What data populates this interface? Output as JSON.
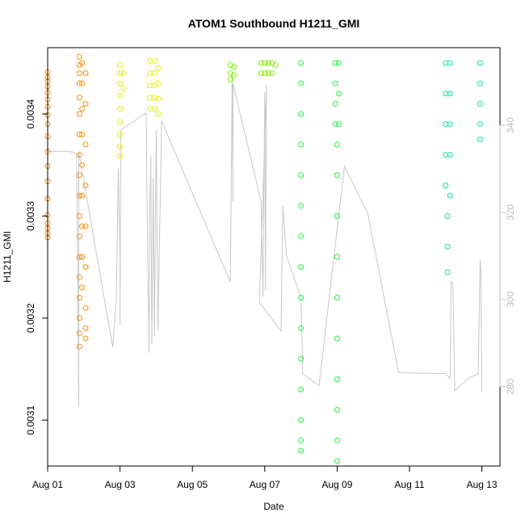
{
  "chart_data": {
    "type": "scatter",
    "title": "ATOM1 Southbound H1211_GMI",
    "xlabel": "Date",
    "ylabel": "H1211_GMI",
    "x_ticks": [
      "Aug 01",
      "Aug 03",
      "Aug 05",
      "Aug 07",
      "Aug 09",
      "Aug 11",
      "Aug 13"
    ],
    "y_ticks": [
      "0.0031",
      "0.0032",
      "0.0033",
      "0.0034"
    ],
    "y_ticks_right": [
      "280",
      "300",
      "320",
      "340"
    ],
    "xlim": [
      0.0,
      12.5
    ],
    "ylim": [
      0.003055,
      0.003465
    ],
    "ylim_right": [
      261.8,
      357.8
    ],
    "grid": false,
    "secondary_series": {
      "color": "#c8c8c8",
      "points": [
        [
          0.0,
          301.4
        ],
        [
          0.0,
          334.0
        ],
        [
          0.6,
          334.0
        ],
        [
          0.8,
          333.5
        ],
        [
          0.86,
          275.5
        ],
        [
          0.86,
          334.0
        ],
        [
          1.8,
          289.0
        ],
        [
          1.9,
          300.6
        ],
        [
          1.95,
          330.0
        ],
        [
          2.0,
          309.5
        ],
        [
          2.0,
          294.0
        ],
        [
          2.02,
          338.9
        ],
        [
          2.72,
          342.8
        ],
        [
          2.8,
          287.8
        ],
        [
          2.82,
          317.6
        ],
        [
          2.85,
          333.0
        ],
        [
          2.88,
          289.8
        ],
        [
          2.92,
          328.0
        ],
        [
          2.95,
          291.5
        ],
        [
          3.0,
          339.0
        ],
        [
          3.05,
          293.0
        ],
        [
          3.1,
          318.0
        ],
        [
          3.15,
          341.0
        ],
        [
          5.05,
          304.0
        ],
        [
          5.1,
          352.0
        ],
        [
          5.12,
          322.5
        ],
        [
          5.12,
          349.5
        ],
        [
          5.9,
          322.5
        ],
        [
          5.95,
          300.6
        ],
        [
          6.0,
          347.6
        ],
        [
          6.02,
          302.0
        ],
        [
          6.05,
          349.2
        ],
        [
          5.85,
          299.3
        ],
        [
          6.45,
          292.8
        ],
        [
          6.5,
          321.4
        ],
        [
          6.6,
          310.0
        ],
        [
          7.0,
          300.5
        ],
        [
          7.05,
          283.0
        ],
        [
          7.5,
          280.2
        ],
        [
          8.2,
          330.6
        ],
        [
          8.85,
          319.6
        ],
        [
          9.7,
          283.2
        ],
        [
          11.0,
          283.0
        ],
        [
          11.12,
          281.9
        ],
        [
          11.15,
          304.2
        ],
        [
          11.2,
          303.6
        ],
        [
          11.25,
          279.1
        ],
        [
          11.65,
          282.1
        ],
        [
          11.9,
          282.9
        ],
        [
          11.95,
          309.1
        ],
        [
          11.97,
          306.8
        ],
        [
          12.0,
          278.8
        ]
      ]
    },
    "series": [
      {
        "color": "#ff8c00",
        "points": [
          [
            0.0,
            0.003441
          ],
          [
            0.0,
            0.003436
          ],
          [
            0.0,
            0.003432
          ],
          [
            0.0,
            0.003427
          ],
          [
            0.0,
            0.003421
          ],
          [
            0.0,
            0.003414
          ],
          [
            0.0,
            0.003407
          ],
          [
            0.0,
            0.003399
          ],
          [
            0.0,
            0.00339
          ],
          [
            0.0,
            0.003378
          ],
          [
            0.0,
            0.003363
          ],
          [
            0.0,
            0.003349
          ],
          [
            0.0,
            0.003334
          ],
          [
            0.0,
            0.003317
          ],
          [
            0.0,
            0.003301
          ],
          [
            0.0,
            0.003293
          ],
          [
            0.0,
            0.003288
          ],
          [
            0.0,
            0.003283
          ],
          [
            0.0,
            0.003279
          ],
          [
            0.88,
            0.003456
          ],
          [
            0.88,
            0.003448
          ],
          [
            0.88,
            0.00344
          ],
          [
            0.88,
            0.00343
          ],
          [
            0.88,
            0.003416
          ],
          [
            0.88,
            0.0034
          ],
          [
            0.88,
            0.00338
          ],
          [
            0.88,
            0.00336
          ],
          [
            0.88,
            0.00334
          ],
          [
            0.88,
            0.00332
          ],
          [
            0.88,
            0.0033
          ],
          [
            0.88,
            0.00328
          ],
          [
            0.88,
            0.00326
          ],
          [
            0.88,
            0.00324
          ],
          [
            0.88,
            0.00322
          ],
          [
            0.88,
            0.0032
          ],
          [
            0.88,
            0.003185
          ],
          [
            0.88,
            0.003172
          ],
          [
            0.95,
            0.00345
          ],
          [
            0.95,
            0.00343
          ],
          [
            0.95,
            0.003405
          ],
          [
            0.95,
            0.00338
          ],
          [
            0.95,
            0.00335
          ],
          [
            0.95,
            0.00332
          ],
          [
            0.95,
            0.00329
          ],
          [
            0.95,
            0.00326
          ],
          [
            0.95,
            0.00323
          ],
          [
            1.05,
            0.00344
          ],
          [
            1.05,
            0.00341
          ],
          [
            1.05,
            0.00337
          ],
          [
            1.05,
            0.00333
          ],
          [
            1.05,
            0.00329
          ],
          [
            1.05,
            0.00325
          ],
          [
            1.05,
            0.00321
          ],
          [
            1.05,
            0.00319
          ],
          [
            1.05,
            0.00318
          ]
        ]
      },
      {
        "color": "#e6f000",
        "points": [
          [
            2.0,
            0.003448
          ],
          [
            2.0,
            0.00344
          ],
          [
            2.0,
            0.00343
          ],
          [
            2.0,
            0.003418
          ],
          [
            2.0,
            0.003405
          ],
          [
            2.0,
            0.003392
          ],
          [
            2.0,
            0.00338
          ],
          [
            2.0,
            0.003368
          ],
          [
            2.0,
            0.003359
          ],
          [
            2.1,
            0.00344
          ],
          [
            2.1,
            0.003425
          ],
          [
            2.82,
            0.003452
          ],
          [
            2.82,
            0.00344
          ],
          [
            2.82,
            0.003428
          ],
          [
            2.82,
            0.003416
          ],
          [
            2.82,
            0.003405
          ],
          [
            2.95,
            0.003452
          ],
          [
            2.95,
            0.00344
          ],
          [
            2.95,
            0.003428
          ],
          [
            2.95,
            0.003416
          ],
          [
            2.95,
            0.003405
          ],
          [
            3.05,
            0.003445
          ],
          [
            3.05,
            0.00343
          ],
          [
            3.05,
            0.003415
          ],
          [
            3.05,
            0.0034
          ]
        ]
      },
      {
        "color": "#80f000",
        "points": [
          [
            5.05,
            0.003448
          ],
          [
            5.05,
            0.00344
          ],
          [
            5.05,
            0.003434
          ],
          [
            5.15,
            0.003446
          ],
          [
            5.15,
            0.003438
          ],
          [
            5.9,
            0.00345
          ],
          [
            5.9,
            0.00344
          ],
          [
            6.0,
            0.00345
          ],
          [
            6.0,
            0.00344
          ],
          [
            6.1,
            0.00345
          ],
          [
            6.1,
            0.00344
          ],
          [
            6.2,
            0.00345
          ],
          [
            6.2,
            0.00344
          ],
          [
            6.3,
            0.003448
          ]
        ]
      },
      {
        "color": "#1ef040",
        "points": [
          [
            7.0,
            0.00345
          ],
          [
            7.0,
            0.00343
          ],
          [
            7.0,
            0.0034
          ],
          [
            7.0,
            0.00337
          ],
          [
            7.0,
            0.00334
          ],
          [
            7.0,
            0.00331
          ],
          [
            7.0,
            0.00328
          ],
          [
            7.0,
            0.00325
          ],
          [
            7.0,
            0.00322
          ],
          [
            7.0,
            0.00319
          ],
          [
            7.0,
            0.00316
          ],
          [
            7.0,
            0.00313
          ],
          [
            7.0,
            0.0031
          ],
          [
            7.0,
            0.00308
          ],
          [
            7.0,
            0.00307
          ],
          [
            7.95,
            0.00345
          ],
          [
            7.95,
            0.00343
          ],
          [
            7.95,
            0.00341
          ],
          [
            7.95,
            0.00339
          ],
          [
            8.0,
            0.00337
          ],
          [
            8.0,
            0.00334
          ],
          [
            8.0,
            0.0033
          ],
          [
            8.0,
            0.00326
          ],
          [
            8.0,
            0.00322
          ],
          [
            8.0,
            0.00318
          ],
          [
            8.0,
            0.00314
          ],
          [
            8.0,
            0.00311
          ],
          [
            8.0,
            0.00308
          ],
          [
            8.0,
            0.00306
          ],
          [
            8.05,
            0.00345
          ],
          [
            8.05,
            0.00342
          ],
          [
            8.05,
            0.00339
          ]
        ]
      },
      {
        "color": "#00e6a0",
        "points": [
          [
            11.0,
            0.00345
          ],
          [
            11.0,
            0.00342
          ],
          [
            11.0,
            0.00339
          ],
          [
            11.0,
            0.00336
          ],
          [
            11.0,
            0.00333
          ],
          [
            11.05,
            0.0033
          ],
          [
            11.05,
            0.00327
          ],
          [
            11.05,
            0.003245
          ],
          [
            11.12,
            0.00345
          ],
          [
            11.12,
            0.00342
          ],
          [
            11.12,
            0.00339
          ],
          [
            11.12,
            0.00336
          ],
          [
            11.12,
            0.00332
          ],
          [
            11.95,
            0.00345
          ],
          [
            11.95,
            0.00343
          ],
          [
            11.95,
            0.00341
          ],
          [
            11.95,
            0.00339
          ],
          [
            11.95,
            0.003375
          ]
        ]
      }
    ]
  }
}
